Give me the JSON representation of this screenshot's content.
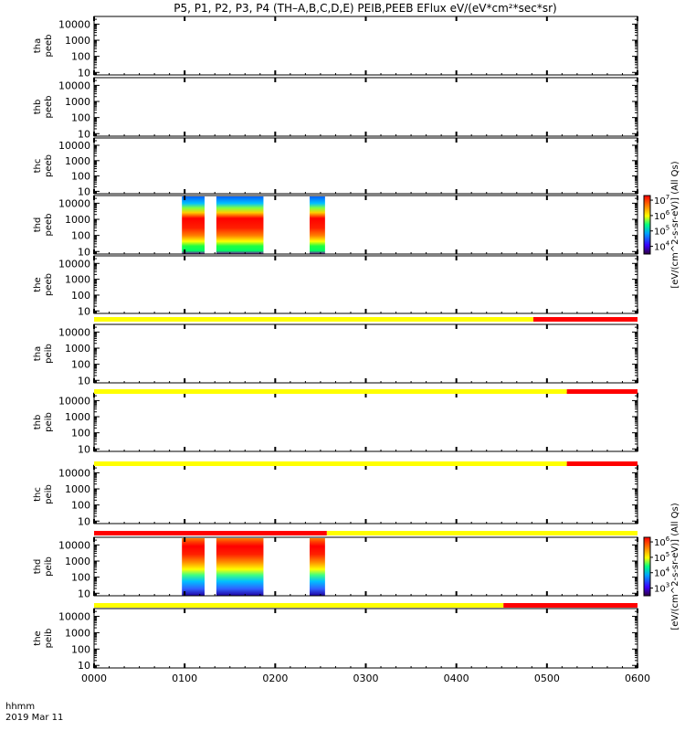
{
  "title": "P5, P1, P2, P3, P4 (TH–A,B,C,D,E) PEIB,PEEB EFlux eV/(eV*cm²*sec*sr)",
  "time_axis": {
    "corner_label_1": "hhmm",
    "corner_label_2": "2019 Mar 11",
    "ticks": [
      "0000",
      "0100",
      "0200",
      "0300",
      "0400",
      "0500",
      "0600"
    ],
    "range_hours": [
      0,
      6
    ]
  },
  "colorbar_labels": {
    "electron": "[eV/(cm^2-s-sr-eV)] (All Qs)",
    "ion": "[eV/(cm^2-s-sr-eV)] (All Qs)"
  },
  "chart_data": [
    {
      "type": "heatmap",
      "probe": "tha",
      "species": "peeb",
      "ylabel_1": "tha",
      "ylabel_2": "peeb",
      "yscale": "log",
      "ylim": [
        7,
        30000
      ],
      "yticks": [
        "10",
        "100",
        "1000",
        "10000"
      ],
      "intervals": [],
      "status_bar": null
    },
    {
      "type": "heatmap",
      "probe": "thb",
      "species": "peeb",
      "ylabel_1": "thb",
      "ylabel_2": "peeb",
      "yscale": "log",
      "ylim": [
        7,
        30000
      ],
      "yticks": [
        "10",
        "100",
        "1000",
        "10000"
      ],
      "intervals": [],
      "status_bar": null
    },
    {
      "type": "heatmap",
      "probe": "thc",
      "species": "peeb",
      "ylabel_1": "thc",
      "ylabel_2": "peeb",
      "yscale": "log",
      "ylim": [
        7,
        30000
      ],
      "yticks": [
        "10",
        "100",
        "1000",
        "10000"
      ],
      "intervals": [],
      "status_bar": null
    },
    {
      "type": "heatmap",
      "probe": "thd",
      "species": "peeb",
      "ylabel_1": "thd",
      "ylabel_2": "peeb",
      "yscale": "log",
      "ylim": [
        7,
        30000
      ],
      "yticks": [
        "10",
        "100",
        "1000",
        "10000"
      ],
      "intervals": [
        [
          0.97,
          1.22
        ],
        [
          1.35,
          1.87
        ],
        [
          2.38,
          2.55
        ]
      ],
      "colorbar": {
        "ticks": [
          {
            "base": "10",
            "exp": "7"
          },
          {
            "base": "10",
            "exp": "6"
          },
          {
            "base": "10",
            "exp": "5"
          },
          {
            "base": "10",
            "exp": "4"
          }
        ],
        "range_log": [
          3.5,
          7.3
        ]
      },
      "status_bar": null
    },
    {
      "type": "heatmap",
      "probe": "the",
      "species": "peeb",
      "ylabel_1": "the",
      "ylabel_2": "peeb",
      "yscale": "log",
      "ylim": [
        7,
        30000
      ],
      "yticks": [
        "10",
        "100",
        "1000",
        "10000"
      ],
      "intervals": [],
      "status_bar": {
        "segments": [
          {
            "start": 0,
            "end": 4.85,
            "color": "#ffff00"
          },
          {
            "start": 4.85,
            "end": 6,
            "color": "#ff0000"
          }
        ]
      }
    },
    {
      "type": "heatmap",
      "probe": "tha",
      "species": "peib",
      "ylabel_1": "tha",
      "ylabel_2": "peib",
      "yscale": "log",
      "ylim": [
        7,
        30000
      ],
      "yticks": [
        "10",
        "100",
        "1000",
        "10000"
      ],
      "intervals": [],
      "status_bar": {
        "segments": [
          {
            "start": 0,
            "end": 5.22,
            "color": "#ffff00"
          },
          {
            "start": 5.22,
            "end": 6,
            "color": "#ff0000"
          }
        ]
      }
    },
    {
      "type": "heatmap",
      "probe": "thb",
      "species": "peib",
      "ylabel_1": "thb",
      "ylabel_2": "peib",
      "yscale": "log",
      "ylim": [
        7,
        30000
      ],
      "yticks": [
        "10",
        "100",
        "1000",
        "10000"
      ],
      "intervals": [],
      "status_bar": {
        "segments": [
          {
            "start": 0,
            "end": 5.22,
            "color": "#ffff00"
          },
          {
            "start": 5.22,
            "end": 6,
            "color": "#ff0000"
          }
        ]
      }
    },
    {
      "type": "heatmap",
      "probe": "thc",
      "species": "peib",
      "ylabel_1": "thc",
      "ylabel_2": "peib",
      "yscale": "log",
      "ylim": [
        7,
        30000
      ],
      "yticks": [
        "10",
        "100",
        "1000",
        "10000"
      ],
      "intervals": [],
      "status_bar": {
        "segments": [
          {
            "start": 0,
            "end": 2.57,
            "color": "#ff0000"
          },
          {
            "start": 2.57,
            "end": 6,
            "color": "#ffff00"
          }
        ]
      }
    },
    {
      "type": "heatmap",
      "probe": "thd",
      "species": "peib",
      "ylabel_1": "thd",
      "ylabel_2": "peib",
      "yscale": "log",
      "ylim": [
        7,
        30000
      ],
      "yticks": [
        "10",
        "100",
        "1000",
        "10000"
      ],
      "intervals": [
        [
          0.97,
          1.22
        ],
        [
          1.35,
          1.87
        ],
        [
          2.38,
          2.55
        ]
      ],
      "colorbar": {
        "ticks": [
          {
            "base": "10",
            "exp": "6"
          },
          {
            "base": "10",
            "exp": "5"
          },
          {
            "base": "10",
            "exp": "4"
          },
          {
            "base": "10",
            "exp": "3"
          }
        ],
        "range_log": [
          2.5,
          6.3
        ]
      },
      "status_bar": {
        "segments": [
          {
            "start": 0,
            "end": 4.52,
            "color": "#ffff00"
          },
          {
            "start": 4.52,
            "end": 6,
            "color": "#ff0000"
          }
        ]
      }
    },
    {
      "type": "heatmap",
      "probe": "the",
      "species": "peib",
      "ylabel_1": "the",
      "ylabel_2": "peib",
      "yscale": "log",
      "ylim": [
        7,
        30000
      ],
      "yticks": [
        "10",
        "100",
        "1000",
        "10000"
      ],
      "intervals": [],
      "status_bar": null
    }
  ]
}
